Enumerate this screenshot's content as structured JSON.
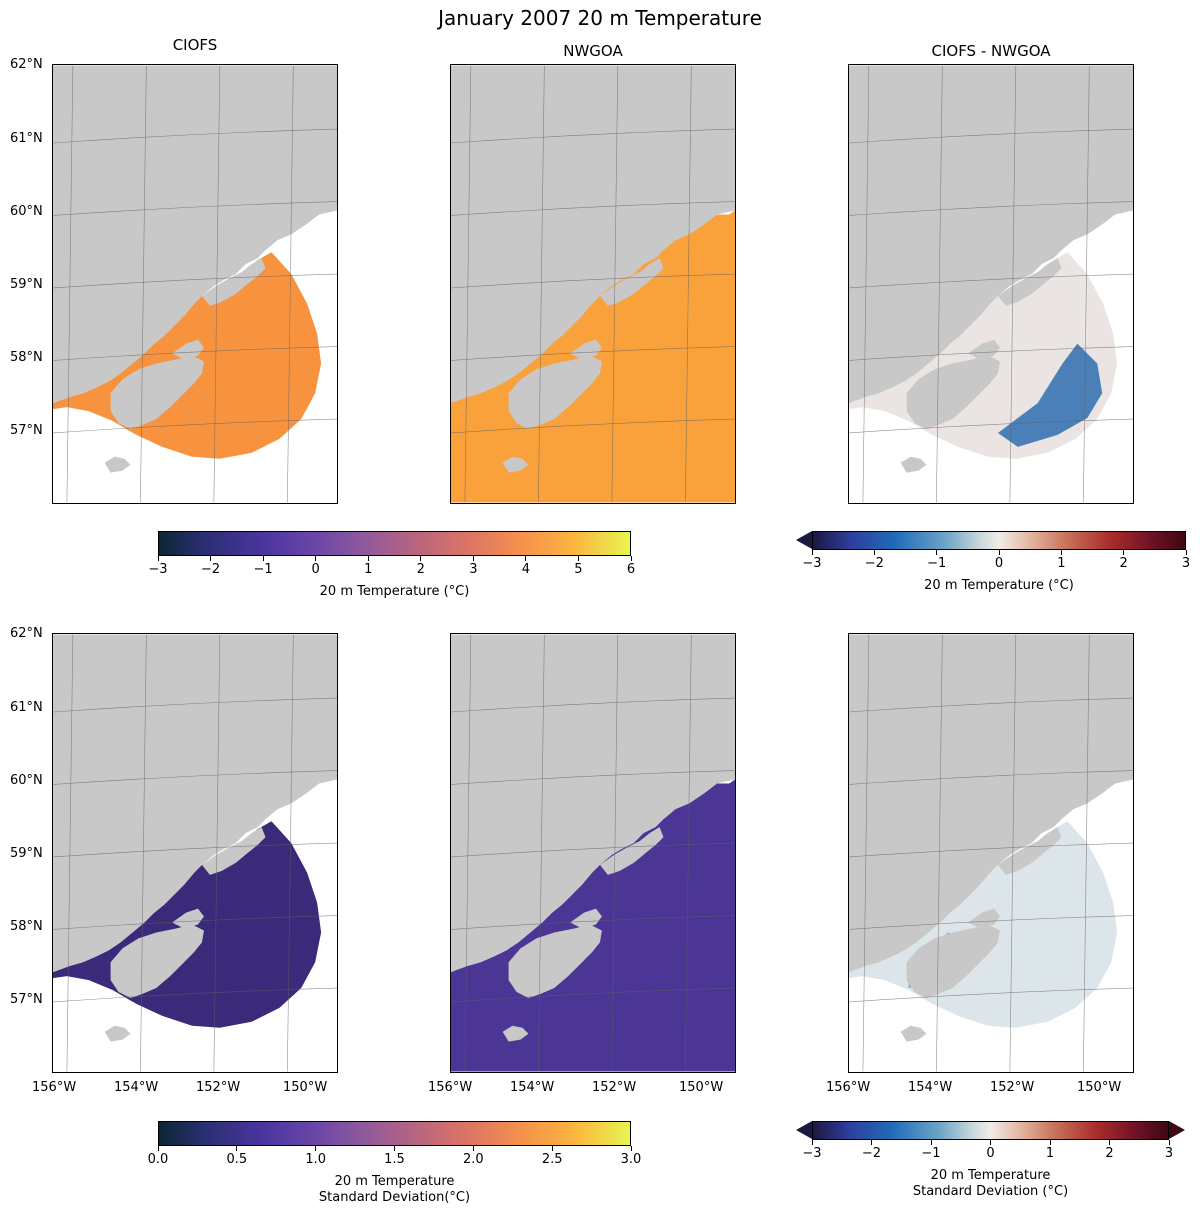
{
  "figure": {
    "title": "January 2007 20 m Temperature",
    "column_titles": [
      "CIOFS",
      "NWGOA",
      "CIOFS - NWGOA"
    ]
  },
  "axes": {
    "lat_labels": [
      "62°N",
      "61°N",
      "60°N",
      "59°N",
      "58°N",
      "57°N"
    ],
    "lon_labels": [
      "156°W",
      "154°W",
      "152°W",
      "150°W"
    ]
  },
  "colorbars": {
    "temp": {
      "ticks": [
        "−3",
        "−2",
        "−1",
        "0",
        "1",
        "2",
        "3",
        "4",
        "5",
        "6"
      ],
      "label": "20 m Temperature (°C)",
      "range": [
        -3,
        6
      ],
      "colormap": "thermal",
      "colors": [
        "#0b2634",
        "#2b2f73",
        "#4a35a0",
        "#6a46a7",
        "#915a9c",
        "#b9657f",
        "#dd7563",
        "#f5914c",
        "#fbb43f",
        "#e8f54f"
      ]
    },
    "temp_diff": {
      "ticks": [
        "−3",
        "−2",
        "−1",
        "0",
        "1",
        "2",
        "3"
      ],
      "label": "20 m Temperature (°C)",
      "range": [
        -3,
        3
      ],
      "extend": "both",
      "colormap": "balance",
      "colors": [
        "#1b1840",
        "#2f3d9c",
        "#1f6bb8",
        "#70a6c8",
        "#c9d9dc",
        "#f1ece8",
        "#e3b9a4",
        "#c9725a",
        "#a82c2c",
        "#6b0f25",
        "#3c0912"
      ]
    },
    "std": {
      "ticks": [
        "0.0",
        "0.5",
        "1.0",
        "1.5",
        "2.0",
        "2.5",
        "3.0"
      ],
      "label": "20 m Temperature\nStandard Deviation(°C)",
      "range": [
        0,
        3
      ],
      "colormap": "thermal"
    },
    "std_diff": {
      "ticks": [
        "−3",
        "−2",
        "−1",
        "0",
        "1",
        "2",
        "3"
      ],
      "label": "20 m Temperature\nStandard Deviation (°C)",
      "range": [
        -3,
        3
      ],
      "extend": "both",
      "colormap": "balance"
    }
  },
  "colors": {
    "land": "#c8c8c8",
    "gridline": "#606060",
    "ciofs_temp": "#f7933f",
    "nwgoa_temp": "#f9a23c",
    "ciofs_std": "#3b2a7a",
    "nwgoa_std": "#4b3595"
  }
}
